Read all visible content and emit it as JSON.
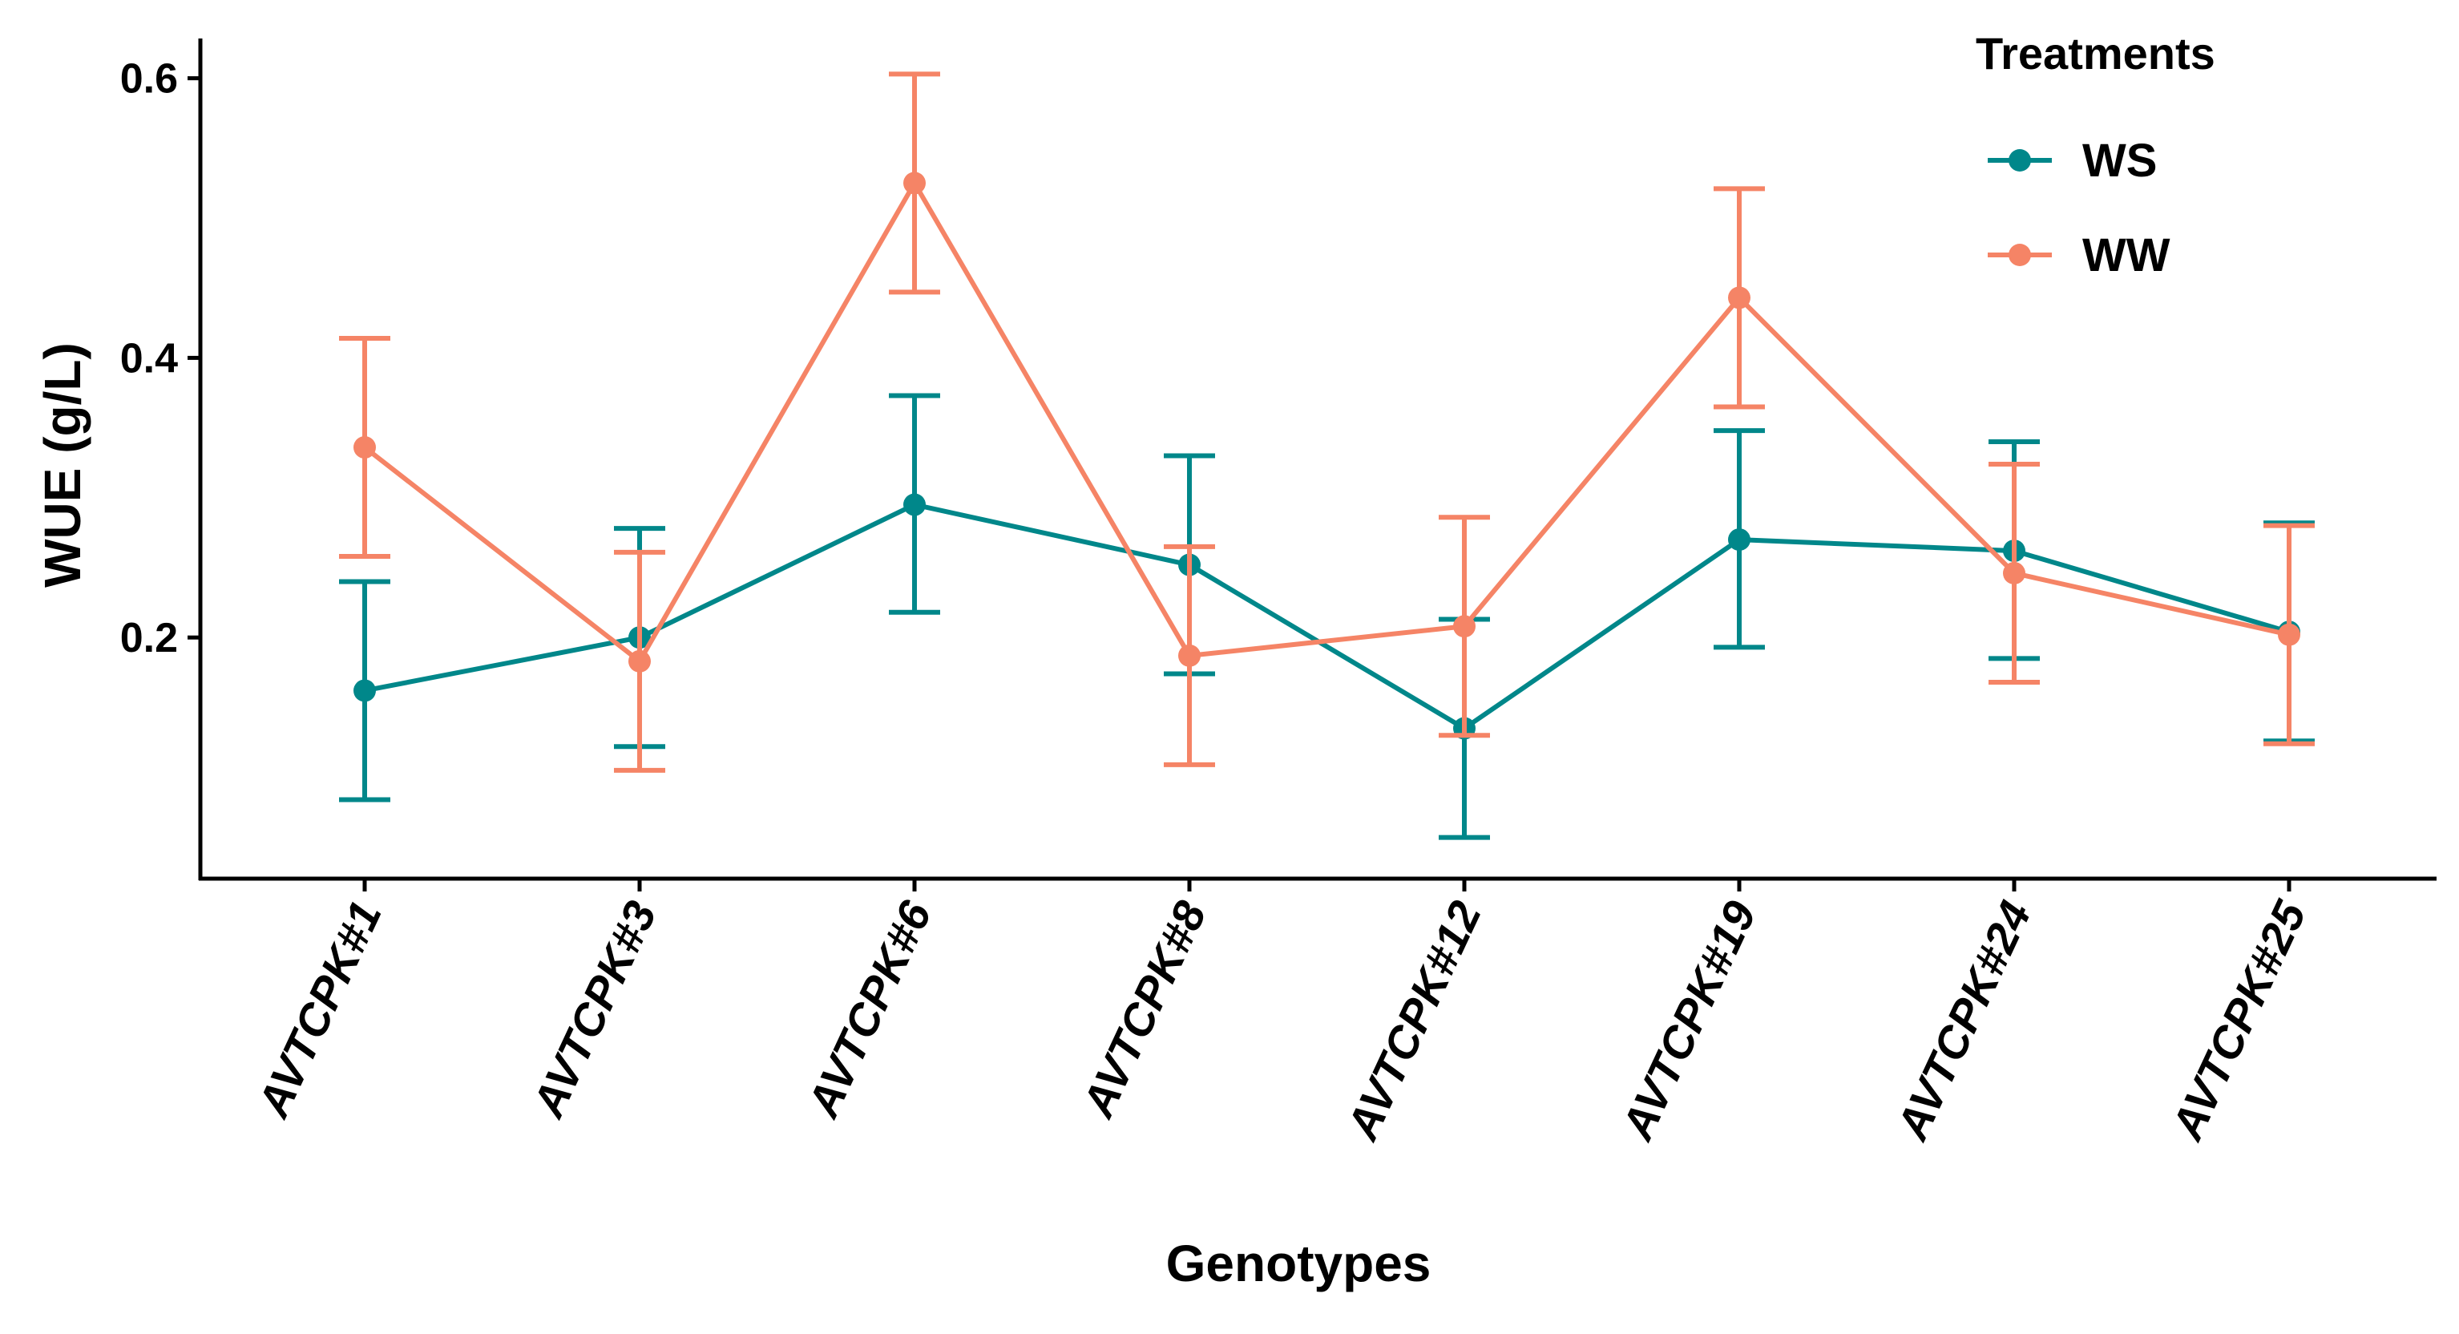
{
  "chart_data": {
    "type": "line",
    "title": "",
    "xlabel": "Genotypes",
    "ylabel": "WUE (g/L)",
    "categories": [
      "AVTCPK#1",
      "AVTCPK#3",
      "AVTCPK#6",
      "AVTCPK#8",
      "AVTCPK#12",
      "AVTCPK#19",
      "AVTCPK#24",
      "AVTCPK#25"
    ],
    "ylim": [
      0.03,
      0.62
    ],
    "yticks": [
      0.2,
      0.4,
      0.6
    ],
    "ytick_labels": [
      "0.2",
      "0.4",
      "0.6"
    ],
    "grid": false,
    "legend": {
      "title": "Treatments",
      "position": "top-right"
    },
    "series": [
      {
        "name": "WS",
        "color": "#00878A",
        "values": [
          0.162,
          0.2,
          0.295,
          0.252,
          0.135,
          0.27,
          0.262,
          0.204
        ],
        "error_lower": [
          0.084,
          0.122,
          0.218,
          0.174,
          0.057,
          0.193,
          0.185,
          0.126
        ],
        "error_upper": [
          0.24,
          0.278,
          0.373,
          0.33,
          0.213,
          0.348,
          0.34,
          0.282
        ]
      },
      {
        "name": "WW",
        "color": "#F58466",
        "values": [
          0.336,
          0.183,
          0.525,
          0.187,
          0.208,
          0.443,
          0.246,
          0.202
        ],
        "error_lower": [
          0.258,
          0.105,
          0.447,
          0.109,
          0.13,
          0.365,
          0.168,
          0.124
        ],
        "error_upper": [
          0.414,
          0.261,
          0.603,
          0.265,
          0.286,
          0.521,
          0.324,
          0.28
        ]
      }
    ]
  }
}
